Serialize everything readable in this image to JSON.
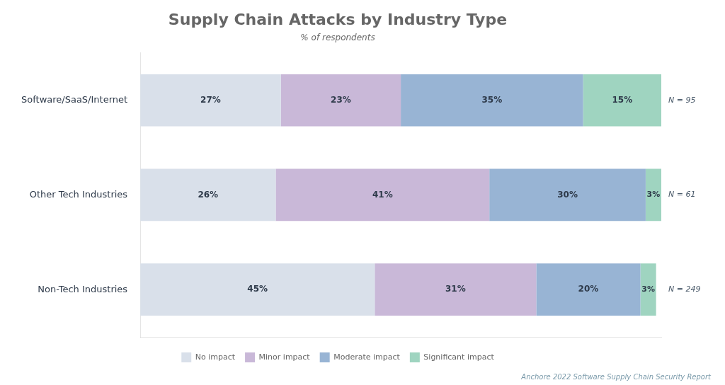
{
  "chart_data": {
    "type": "bar",
    "orientation": "horizontal",
    "stacked": true,
    "title": "Supply Chain Attacks by Industry Type",
    "subtitle": "% of respondents",
    "source": "Anchore 2022 Software Supply Chain Security Report",
    "categories": [
      "Software/SaaS/Internet",
      "Other Tech Industries",
      "Non-Tech Industries"
    ],
    "annotations": [
      "N = 95",
      "N = 61",
      "N = 249"
    ],
    "series": [
      {
        "name": "No impact",
        "color": "#d9e0ea",
        "values": [
          27,
          26,
          45
        ],
        "value_labels": [
          "27%",
          "26%",
          "45%"
        ]
      },
      {
        "name": "Minor impact",
        "color": "#c9b8d8",
        "values": [
          23,
          41,
          31
        ],
        "value_labels": [
          "23%",
          "41%",
          "31%"
        ]
      },
      {
        "name": "Moderate impact",
        "color": "#98b4d4",
        "values": [
          35,
          30,
          20
        ],
        "value_labels": [
          "35%",
          "30%",
          "20%"
        ]
      },
      {
        "name": "Significant impact",
        "color": "#9fd4c0",
        "values": [
          15,
          3,
          3
        ],
        "value_labels": [
          "15%",
          "3%",
          "3%"
        ]
      }
    ],
    "xlim": [
      0,
      100
    ],
    "grid": false,
    "legend": "bottom",
    "data_labels": true,
    "tick_labels": "y"
  }
}
